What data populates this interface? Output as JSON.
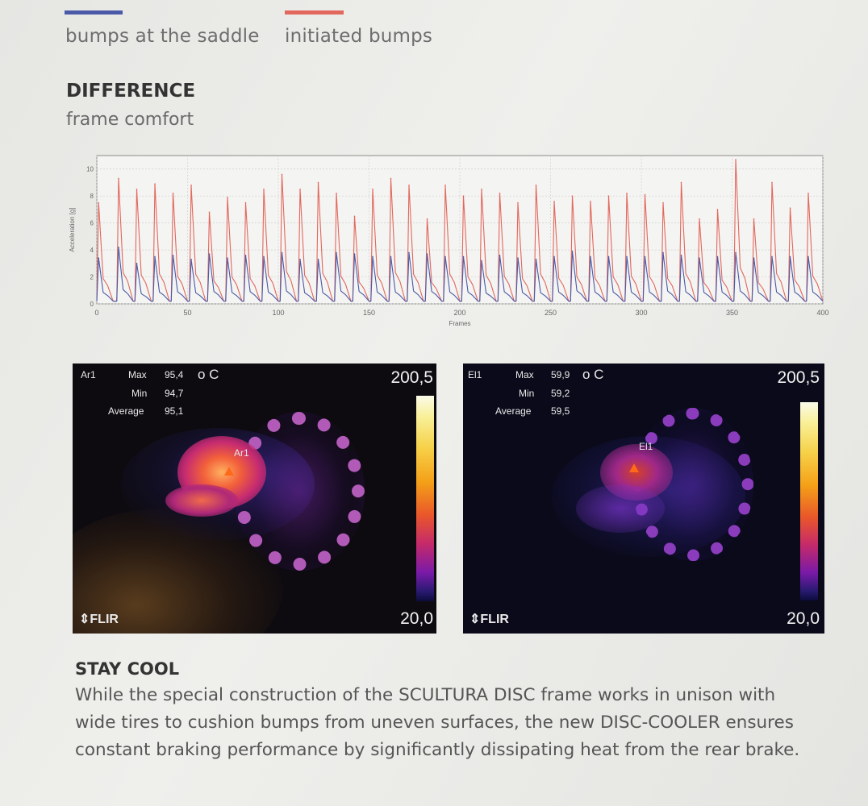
{
  "legend": {
    "items": [
      {
        "label": "bumps at the saddle",
        "color": "#4a5aa8"
      },
      {
        "label": "initiated bumps",
        "color": "#e2675c"
      }
    ]
  },
  "section1": {
    "title": "DIFFERENCE",
    "subtitle": "frame comfort"
  },
  "chart_data": {
    "type": "line",
    "xlabel": "Frames",
    "ylabel": "Acceleration [g]",
    "xlim": [
      0,
      400
    ],
    "ylim": [
      0,
      11
    ],
    "x_ticks": [
      "0",
      "50",
      "100",
      "150",
      "200",
      "250",
      "300",
      "350",
      "400"
    ],
    "y_ticks": [
      "0",
      "2",
      "4",
      "6",
      "8",
      "10"
    ],
    "grid": true,
    "series": [
      {
        "name": "initiated bumps",
        "color": "#e2675c",
        "peak_x": [
          1,
          12,
          22,
          32,
          42,
          52,
          62,
          72,
          82,
          92,
          102,
          112,
          122,
          132,
          142,
          152,
          162,
          172,
          182,
          192,
          202,
          212,
          222,
          232,
          242,
          252,
          262,
          272,
          282,
          292,
          302,
          312,
          322,
          332,
          342,
          352,
          362,
          372,
          382,
          392
        ],
        "peak_y": [
          7.5,
          9.3,
          8.5,
          8.9,
          8.2,
          8.8,
          6.8,
          7.9,
          7.5,
          8.5,
          9.6,
          8.5,
          9.0,
          8.2,
          6.5,
          8.5,
          9.3,
          8.8,
          6.3,
          8.8,
          8.0,
          8.5,
          8.2,
          7.5,
          8.8,
          7.6,
          8.0,
          7.6,
          8.0,
          8.2,
          8.1,
          7.5,
          9.0,
          6.3,
          7.0,
          10.7,
          6.3,
          9.0,
          7.1,
          8.2
        ]
      },
      {
        "name": "bumps at the saddle",
        "color": "#4a5aa8",
        "peak_x": [
          1,
          12,
          22,
          32,
          42,
          52,
          62,
          72,
          82,
          92,
          102,
          112,
          122,
          132,
          142,
          152,
          162,
          172,
          182,
          192,
          202,
          212,
          222,
          232,
          242,
          252,
          262,
          272,
          282,
          292,
          302,
          312,
          322,
          332,
          342,
          352,
          362,
          372,
          382,
          392
        ],
        "peak_y": [
          3.4,
          4.2,
          3.0,
          3.5,
          3.6,
          3.3,
          3.7,
          3.4,
          3.6,
          3.5,
          3.8,
          3.3,
          3.3,
          3.8,
          3.7,
          3.5,
          3.5,
          3.8,
          3.7,
          3.5,
          3.5,
          3.2,
          3.6,
          3.4,
          3.3,
          3.5,
          3.9,
          3.5,
          3.5,
          3.5,
          3.5,
          3.8,
          3.6,
          3.4,
          3.5,
          3.8,
          3.4,
          3.5,
          3.5,
          3.5
        ]
      }
    ]
  },
  "thermal_left": {
    "area": "Ar1",
    "max_label": "Max",
    "max_value": "95,4",
    "unit": "o C",
    "min_label": "Min",
    "min_value": "94,7",
    "avg_label": "Average",
    "avg_value": "95,1",
    "scale_max": "200,5",
    "scale_min": "20,0",
    "marker_label": "Ar1",
    "logo": "FLIR"
  },
  "thermal_right": {
    "area": "El1",
    "max_label": "Max",
    "max_value": "59,9",
    "unit": "o C",
    "min_label": "Min",
    "min_value": "59,2",
    "avg_label": "Average",
    "avg_value": "59,5",
    "scale_max": "200,5",
    "scale_min": "20,0",
    "marker_label": "El1",
    "logo": "FLIR"
  },
  "section2": {
    "title": "STAY COOL",
    "body": "While the special construction of the SCULTURA DISC frame works in unison with wide tires to cushion bumps from uneven surfaces, the new DISC-COOLER ensures constant braking performance by significantly dissipating heat from the rear brake."
  }
}
